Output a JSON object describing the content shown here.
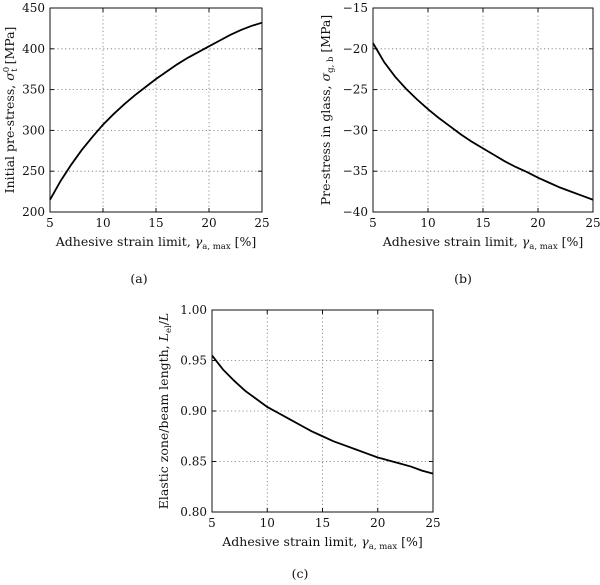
{
  "chart_data": [
    {
      "type": "line",
      "caption": "(a)",
      "xlabel": "Adhesive strain limit, γa, max [%]",
      "xlabel_parts": {
        "text": "Adhesive strain limit, ",
        "sym": "γ",
        "sub": "a, max",
        "unit": " [%]"
      },
      "ylabel": "Initial pre-stress, σ⁰t [MPa]",
      "ylabel_parts": {
        "text": "Initial pre-stress, ",
        "sym": "σ",
        "sub": "t",
        "sup": "0",
        "unit": " [MPa]"
      },
      "xlim": [
        5,
        25
      ],
      "ylim": [
        200,
        450
      ],
      "xticks": [
        5,
        10,
        15,
        20,
        25
      ],
      "yticks": [
        200,
        250,
        300,
        350,
        400,
        450
      ],
      "grid": true,
      "series": [
        {
          "x": [
            5,
            6,
            7,
            8,
            9,
            10,
            11,
            12,
            13,
            14,
            15,
            16,
            17,
            18,
            19,
            20,
            21,
            22,
            23,
            24,
            25
          ],
          "y": [
            215,
            238,
            258,
            276,
            292,
            307,
            320,
            332,
            343,
            353,
            363,
            372,
            381,
            389,
            396,
            403,
            410,
            417,
            423,
            428,
            432
          ]
        }
      ]
    },
    {
      "type": "line",
      "caption": "(b)",
      "xlabel": "Adhesive strain limit, γa, max [%]",
      "xlabel_parts": {
        "text": "Adhesive strain limit, ",
        "sym": "γ",
        "sub": "a, max",
        "unit": " [%]"
      },
      "ylabel": "Pre-stress in glass, σg, b [MPa]",
      "ylabel_parts": {
        "text": "Pre-stress in glass, ",
        "sym": "σ",
        "sub": "g, b",
        "sup": "",
        "unit": " [MPa]"
      },
      "xlim": [
        5,
        25
      ],
      "ylim": [
        -40,
        -15
      ],
      "xticks": [
        5,
        10,
        15,
        20,
        25
      ],
      "yticks": [
        -40,
        -35,
        -30,
        -25,
        -20,
        -15
      ],
      "grid": true,
      "series": [
        {
          "x": [
            5,
            6,
            7,
            8,
            9,
            10,
            11,
            12,
            13,
            14,
            15,
            16,
            17,
            18,
            19,
            20,
            21,
            22,
            23,
            24,
            25
          ],
          "y": [
            -19.3,
            -21.6,
            -23.4,
            -24.9,
            -26.2,
            -27.4,
            -28.5,
            -29.5,
            -30.5,
            -31.4,
            -32.2,
            -33.0,
            -33.8,
            -34.5,
            -35.1,
            -35.8,
            -36.4,
            -37.0,
            -37.5,
            -38.0,
            -38.5
          ]
        }
      ]
    },
    {
      "type": "line",
      "caption": "(c)",
      "xlabel": "Adhesive strain limit, γa, max [%]",
      "xlabel_parts": {
        "text": "Adhesive strain limit, ",
        "sym": "γ",
        "sub": "a, max",
        "unit": " [%]"
      },
      "ylabel": "Elastic zone/beam length, Lel/L",
      "ylabel_parts": {
        "text": "Elastic zone/beam length, ",
        "sym": "L",
        "sub": "el",
        "sup": "",
        "unit": "/L"
      },
      "xlim": [
        5,
        25
      ],
      "ylim": [
        0.8,
        1.0
      ],
      "xticks": [
        5,
        10,
        15,
        20,
        25
      ],
      "yticks": [
        0.8,
        0.85,
        0.9,
        0.95,
        1.0
      ],
      "ytick_labels": [
        "0.80",
        "0.85",
        "0.90",
        "0.95",
        "1.00"
      ],
      "grid": true,
      "series": [
        {
          "x": [
            5,
            6,
            7,
            8,
            9,
            10,
            11,
            12,
            13,
            14,
            15,
            16,
            17,
            18,
            19,
            20,
            21,
            22,
            23,
            24,
            25
          ],
          "y": [
            0.955,
            0.941,
            0.93,
            0.92,
            0.912,
            0.904,
            0.898,
            0.892,
            0.886,
            0.88,
            0.875,
            0.87,
            0.866,
            0.862,
            0.858,
            0.854,
            0.851,
            0.848,
            0.845,
            0.841,
            0.838
          ]
        }
      ]
    }
  ]
}
